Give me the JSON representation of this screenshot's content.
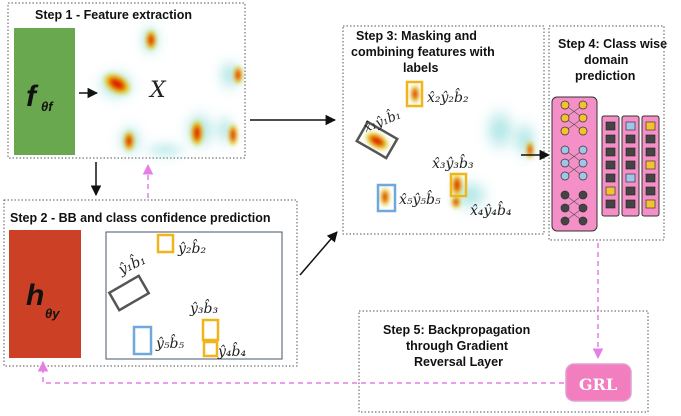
{
  "steps": {
    "s1": {
      "title": "Step 1 - Feature extraction",
      "fn_main": "f",
      "fn_sub": "θf",
      "x_label": "X"
    },
    "s2": {
      "title": "Step 2 - BB and class confidence prediction",
      "fn_main": "h",
      "fn_sub": "θy"
    },
    "s3": {
      "title_l1": "Step 3: Masking and",
      "title_l2": "combining features  with",
      "title_l3": "labels"
    },
    "s4": {
      "title_l1": "Step 4: Class wise",
      "title_l2": "domain",
      "title_l3": "prediction"
    },
    "s5": {
      "title_l1": "Step 5: Backpropagation",
      "title_l2": "through Gradient",
      "title_l3": "Reversal Layer",
      "grl": "GRL"
    }
  },
  "bb_labels": {
    "b1": "ŷ₁b̂₁",
    "b2": "ŷ₂b̂₂",
    "b3": "ŷ₃b̂₃",
    "b4": "ŷ₄b̂₄",
    "b5": "ŷ₅b̂₅"
  },
  "masked_labels": {
    "m1": "x̂₁ŷ₁b̂₁",
    "m2": "x̂₂ŷ₂b̂₂",
    "m3": "x̂₃ŷ₃b̂₃",
    "m4": "x̂₄ŷ₄b̂₄",
    "m5": "x̂₅ŷ₅b̂₅"
  },
  "colors": {
    "f_block": "#6aa84f",
    "h_block": "#cc4125",
    "domain_classifier": "#f48fc7",
    "grl": "#f27ec0",
    "back_arrow": "#e67ee6",
    "yellow_box": "#f1b51c",
    "blue_box": "#6fa8dc",
    "gray_box": "#555555"
  }
}
